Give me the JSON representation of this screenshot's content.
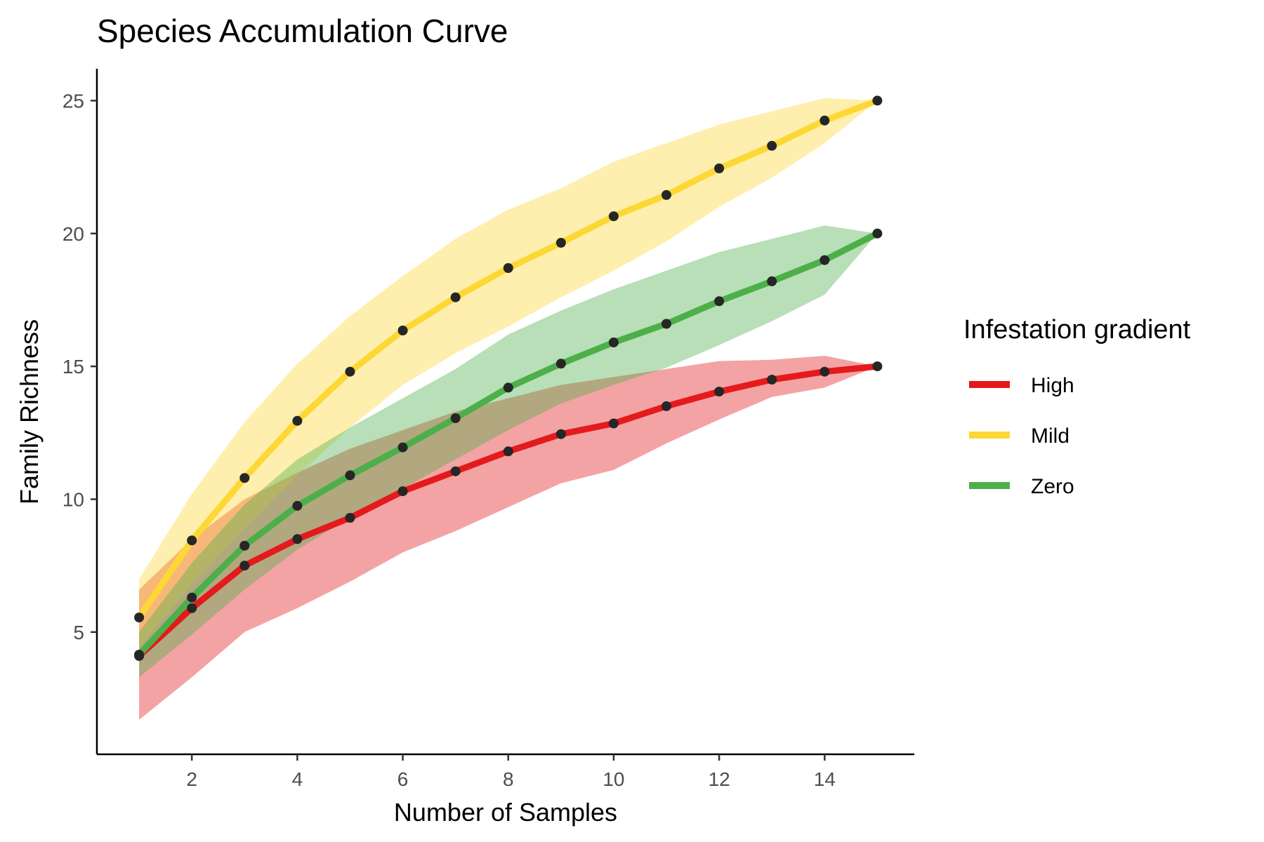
{
  "chart_data": {
    "type": "line",
    "title": "Species Accumulation Curve",
    "xlabel": "Number of Samples",
    "ylabel": "Family Richness",
    "xlim": [
      0.2,
      15.7
    ],
    "ylim": [
      0.4,
      26.2
    ],
    "xticks": [
      2,
      4,
      6,
      8,
      10,
      12,
      14
    ],
    "yticks": [
      5,
      10,
      15,
      20,
      25
    ],
    "grid": false,
    "legend": {
      "title": "Infestation gradient",
      "position": "right"
    },
    "x": [
      1,
      2,
      3,
      4,
      5,
      6,
      7,
      8,
      9,
      10,
      11,
      12,
      13,
      14,
      15
    ],
    "series": [
      {
        "name": "High",
        "color": "#e41a1c",
        "values": [
          4.1,
          5.9,
          7.5,
          8.5,
          9.3,
          10.3,
          11.05,
          11.8,
          12.45,
          12.85,
          13.5,
          14.05,
          14.5,
          14.8,
          15.0
        ],
        "lower": [
          1.7,
          3.3,
          5.0,
          5.9,
          6.9,
          8.0,
          8.8,
          9.7,
          10.6,
          11.1,
          12.1,
          13.0,
          13.85,
          14.2,
          15.0
        ],
        "upper": [
          6.6,
          8.5,
          10.0,
          11.0,
          11.9,
          12.6,
          13.3,
          13.8,
          14.3,
          14.6,
          14.9,
          15.2,
          15.25,
          15.4,
          15.0
        ]
      },
      {
        "name": "Mild",
        "color": "#fdd835",
        "values": [
          5.55,
          8.45,
          10.8,
          12.95,
          14.8,
          16.35,
          17.6,
          18.7,
          19.65,
          20.65,
          21.45,
          22.45,
          23.3,
          24.25,
          25.0
        ],
        "lower": [
          4.4,
          6.8,
          8.9,
          10.9,
          12.7,
          14.3,
          15.5,
          16.5,
          17.6,
          18.6,
          19.7,
          21.0,
          22.1,
          23.4,
          25.0
        ],
        "upper": [
          7.0,
          10.2,
          12.9,
          15.1,
          16.9,
          18.4,
          19.8,
          20.9,
          21.7,
          22.7,
          23.4,
          24.1,
          24.6,
          25.1,
          25.0
        ]
      },
      {
        "name": "Zero",
        "color": "#4daf4a",
        "values": [
          4.15,
          6.3,
          8.25,
          9.75,
          10.9,
          11.95,
          13.05,
          14.2,
          15.1,
          15.9,
          16.6,
          17.45,
          18.2,
          19.0,
          20.0
        ],
        "lower": [
          3.3,
          4.9,
          6.6,
          8.1,
          9.3,
          10.4,
          11.5,
          12.6,
          13.6,
          14.3,
          14.95,
          15.8,
          16.7,
          17.7,
          20.0
        ],
        "upper": [
          5.0,
          7.6,
          9.8,
          11.5,
          12.7,
          13.8,
          14.9,
          16.2,
          17.1,
          17.9,
          18.6,
          19.3,
          19.8,
          20.3,
          20.0
        ]
      }
    ]
  }
}
